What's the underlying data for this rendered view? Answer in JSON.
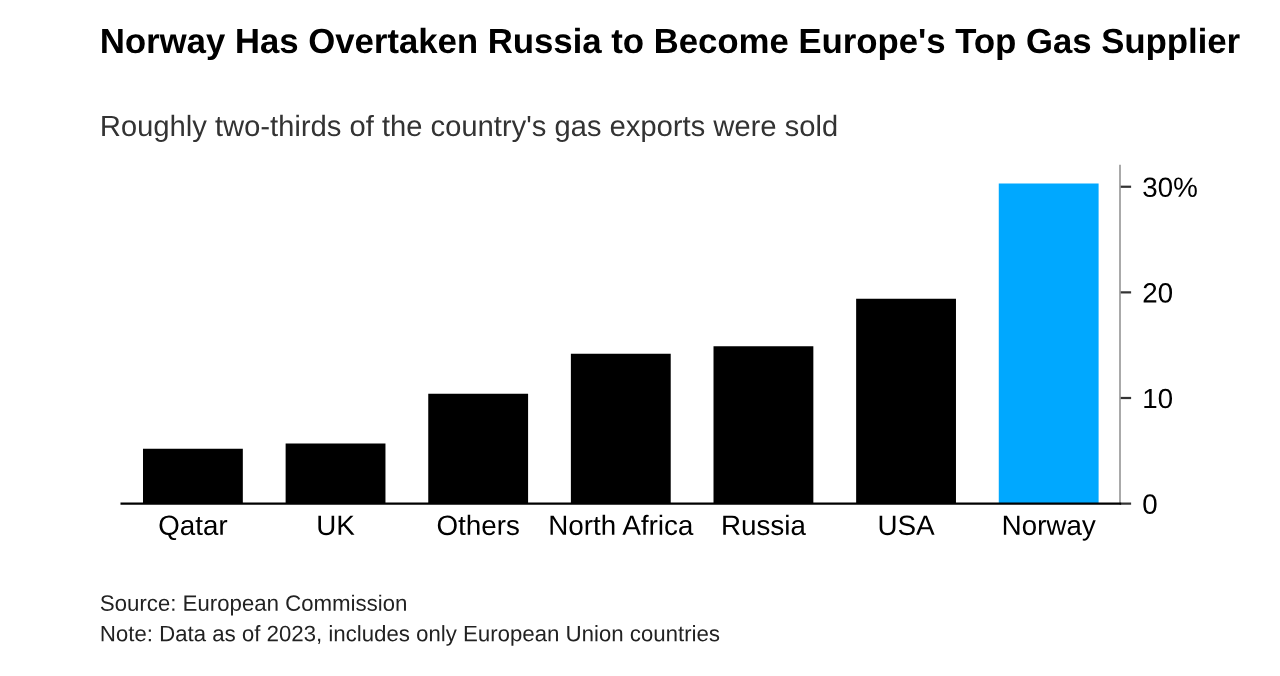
{
  "chart_data": {
    "type": "bar",
    "title": "Norway Has Overtaken Russia to Become Europe's Top Gas Supplier",
    "subtitle": "Roughly two-thirds of the country's gas exports were sold",
    "categories": [
      "Qatar",
      "UK",
      "Others",
      "North Africa",
      "Russia",
      "USA",
      "Norway"
    ],
    "values": [
      5.2,
      5.7,
      10.4,
      14.2,
      14.9,
      19.4,
      30.3
    ],
    "colors": [
      "#000000",
      "#000000",
      "#000000",
      "#000000",
      "#000000",
      "#000000",
      "#00a8ff"
    ],
    "ylim": [
      0,
      32
    ],
    "yticks": [
      0,
      10,
      20,
      {
        "value": 30,
        "label": "30%"
      }
    ],
    "grid": false,
    "annotations": [
      "Source: European Commission",
      "Note: Data as of 2023, includes only European Union countries"
    ]
  }
}
